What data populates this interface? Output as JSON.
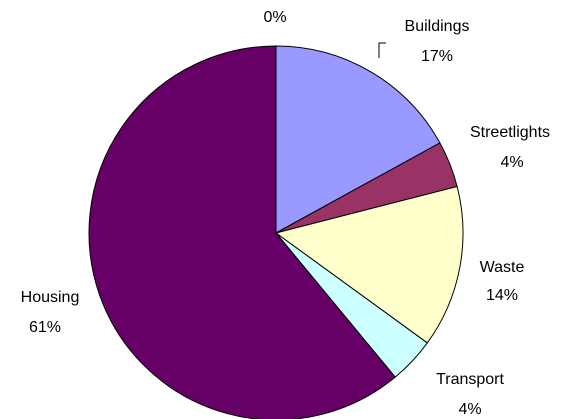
{
  "chart_data": {
    "type": "pie",
    "categories": [
      null,
      "Buildings",
      "Streetlights",
      "Waste",
      "Transport",
      "Housing"
    ],
    "values": [
      0,
      17,
      4,
      14,
      4,
      61
    ],
    "value_labels": [
      "0%",
      "17%",
      "4%",
      "14%",
      "4%",
      "61%"
    ],
    "colors": [
      "#9999ff",
      "#9999ff",
      "#993366",
      "#ffffcc",
      "#ccffff",
      "#660066"
    ]
  }
}
